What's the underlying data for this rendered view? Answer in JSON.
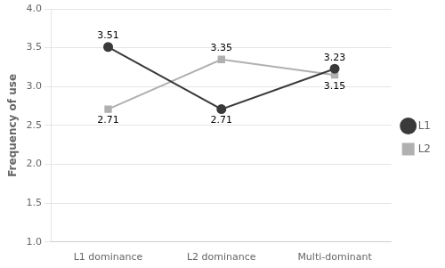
{
  "chart_data": {
    "type": "line",
    "categories": [
      "L1 dominance",
      "L2 dominance",
      "Multi-dominant"
    ],
    "series": [
      {
        "name": "L1",
        "color": "#3a3a3a",
        "marker": "circle",
        "values": [
          3.51,
          2.71,
          3.23
        ]
      },
      {
        "name": "L2",
        "color": "#b0b0b0",
        "marker": "square",
        "values": [
          2.71,
          3.35,
          3.15
        ]
      }
    ],
    "ylabel": "Frequency of use",
    "ylim": [
      1,
      4
    ],
    "yticks": [
      {
        "value": 1,
        "label": "1.0"
      },
      1.5,
      {
        "value": 2,
        "label": "2.0"
      },
      2.5,
      {
        "value": 3,
        "label": "3.0"
      },
      3.5,
      {
        "value": 4,
        "label": "4.0"
      }
    ],
    "grid": true,
    "legend": "right",
    "data_labels": true
  }
}
